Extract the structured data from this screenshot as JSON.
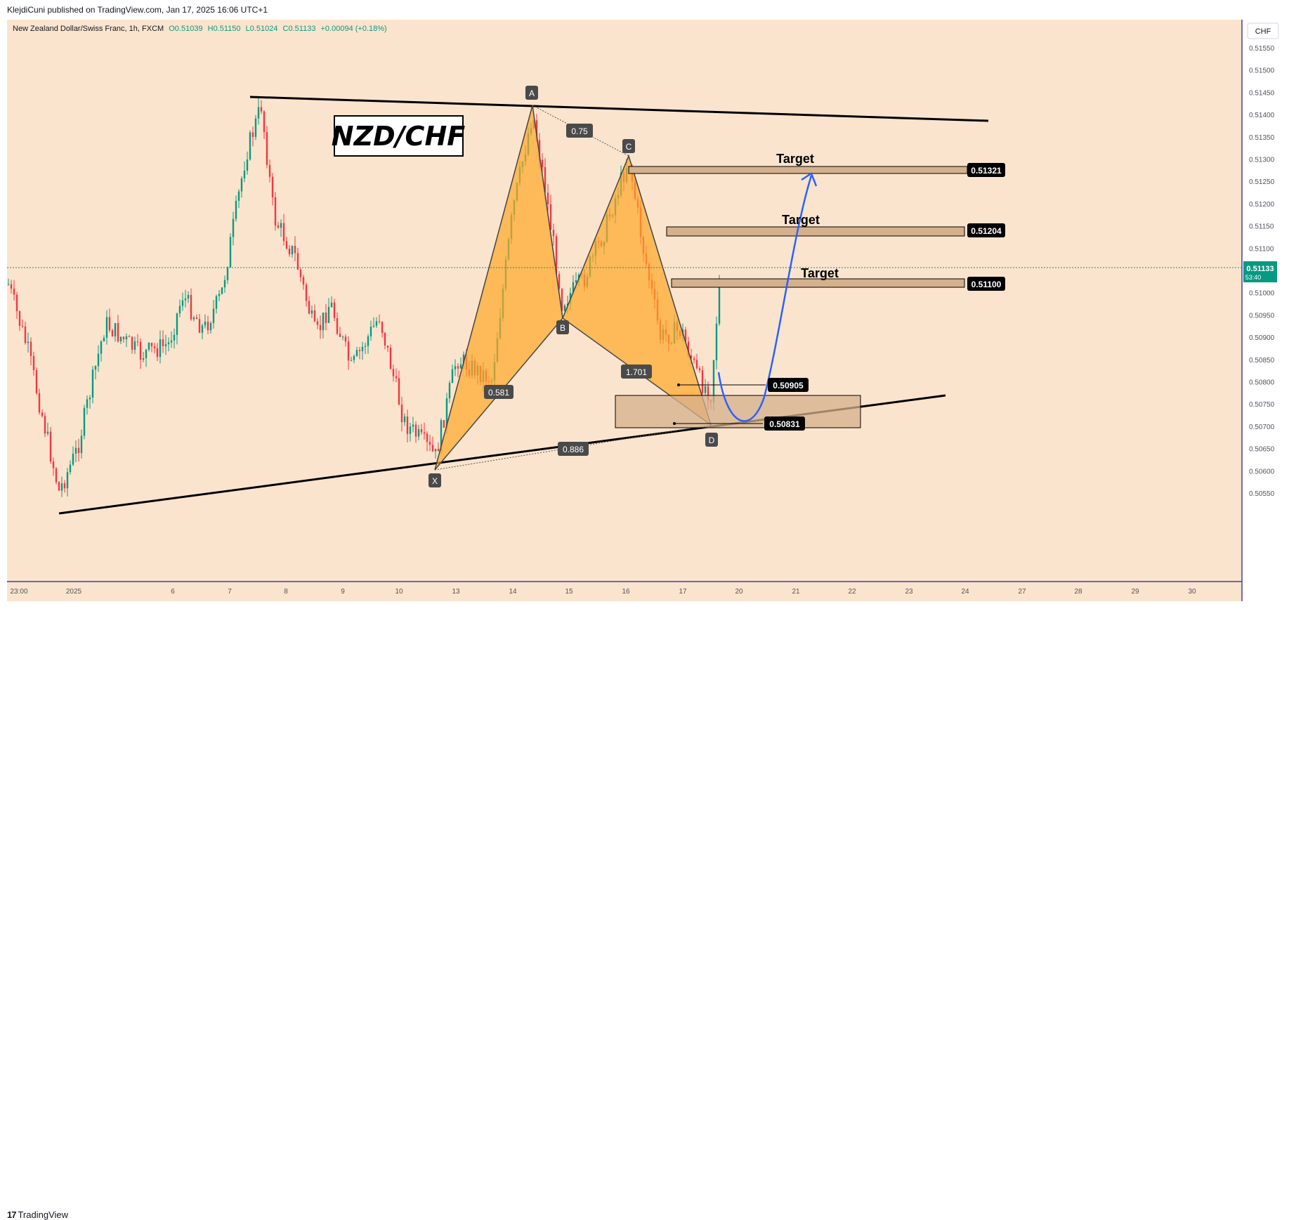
{
  "publisher": "KlejdiCuni published on TradingView.com, Jan 17, 2025 16:06 UTC+1",
  "symbol": {
    "name": "New Zealand Dollar/Swiss Franc, 1h, FXCM",
    "open": "O0.51039",
    "high": "H0.51150",
    "low": "L0.51024",
    "close": "C0.51133",
    "change": "+0.00094 (+0.18%)"
  },
  "currency": "CHF",
  "branding": "TradingView",
  "colors": {
    "background": "#fbe4cd",
    "up": "#089981",
    "down": "#f23645",
    "pattern": "#ffa726",
    "projection": "#2962ff"
  },
  "chart_data": {
    "type": "candlestick",
    "title": "NZD/CHF",
    "y_ticks": [
      "0.51550",
      "0.51500",
      "0.51450",
      "0.51400",
      "0.51350",
      "0.51300",
      "0.51250",
      "0.51200",
      "0.51150",
      "0.51100",
      "0.51050",
      "0.51000",
      "0.50950",
      "0.50900",
      "0.50850",
      "0.50800",
      "0.50750",
      "0.50700",
      "0.50650",
      "0.50600",
      "0.50550"
    ],
    "x_ticks": [
      "23:00",
      "2025",
      "6",
      "7",
      "8",
      "9",
      "10",
      "13",
      "14",
      "15",
      "16",
      "17",
      "20",
      "21",
      "22",
      "23",
      "24",
      "27",
      "28",
      "29",
      "30"
    ],
    "last_price": {
      "value": "0.51133",
      "countdown": "53:40"
    },
    "pattern": {
      "type": "harmonic XABCD",
      "points": [
        {
          "label": "X",
          "price": 0.50745
        },
        {
          "label": "A",
          "price": 0.51445
        },
        {
          "label": "B",
          "price": 0.5104
        },
        {
          "label": "C",
          "price": 0.51345
        },
        {
          "label": "D",
          "price": 0.50831
        }
      ],
      "ratios": [
        "0.75",
        "0.581",
        "1.701",
        "0.886"
      ]
    },
    "levels": [
      {
        "label": "Target",
        "price": "0.51321"
      },
      {
        "label": "Target",
        "price": "0.51204"
      },
      {
        "label": "Target",
        "price": "0.51100"
      },
      {
        "label": "",
        "price": "0.50905"
      },
      {
        "label": "",
        "price": "0.50831"
      }
    ],
    "trendlines": [
      {
        "from": {
          "time": "Jan 7",
          "price": 0.5146
        },
        "to": {
          "time": "Jan 24",
          "price": 0.51415
        }
      },
      {
        "from": {
          "time": "Jan 3",
          "price": 0.50658
        },
        "to": {
          "time": "Jan 23",
          "price": 0.50885
        }
      }
    ]
  }
}
